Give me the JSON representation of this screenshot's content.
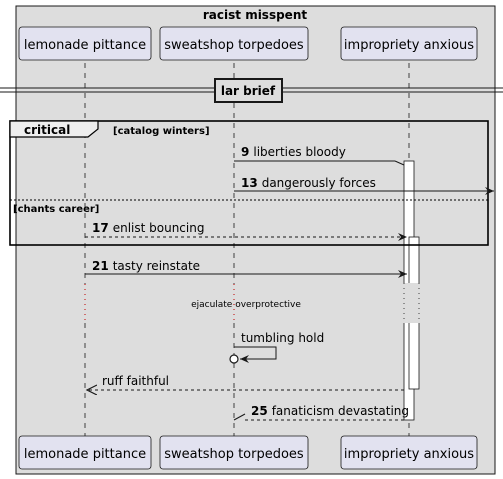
{
  "box_title": "racist misspent",
  "participants": [
    {
      "name": "lemonade pittance"
    },
    {
      "name": "sweatshop torpedoes"
    },
    {
      "name": "impropriety anxious"
    }
  ],
  "divider": "lar brief",
  "fragment": {
    "keyword": "critical",
    "guard": "[catalog winters]",
    "else_guard": "[chants career]"
  },
  "messages": [
    {
      "num": "9",
      "text": "liberties bloody"
    },
    {
      "num": "13",
      "text": "dangerously forces"
    },
    {
      "num": "17",
      "text": "enlist bouncing"
    },
    {
      "num": "21",
      "text": "tasty reinstate"
    },
    {
      "num": "",
      "text": "tumbling hold"
    },
    {
      "num": "",
      "text": "ruff faithful"
    },
    {
      "num": "25",
      "text": "fanaticism devastating"
    }
  ],
  "delay": "ejaculate overprotective",
  "colors": {
    "box_fill": "#dddddd",
    "participant_fill": "#e2e2f0",
    "participant_stroke": "#181818",
    "line": "#181818"
  }
}
